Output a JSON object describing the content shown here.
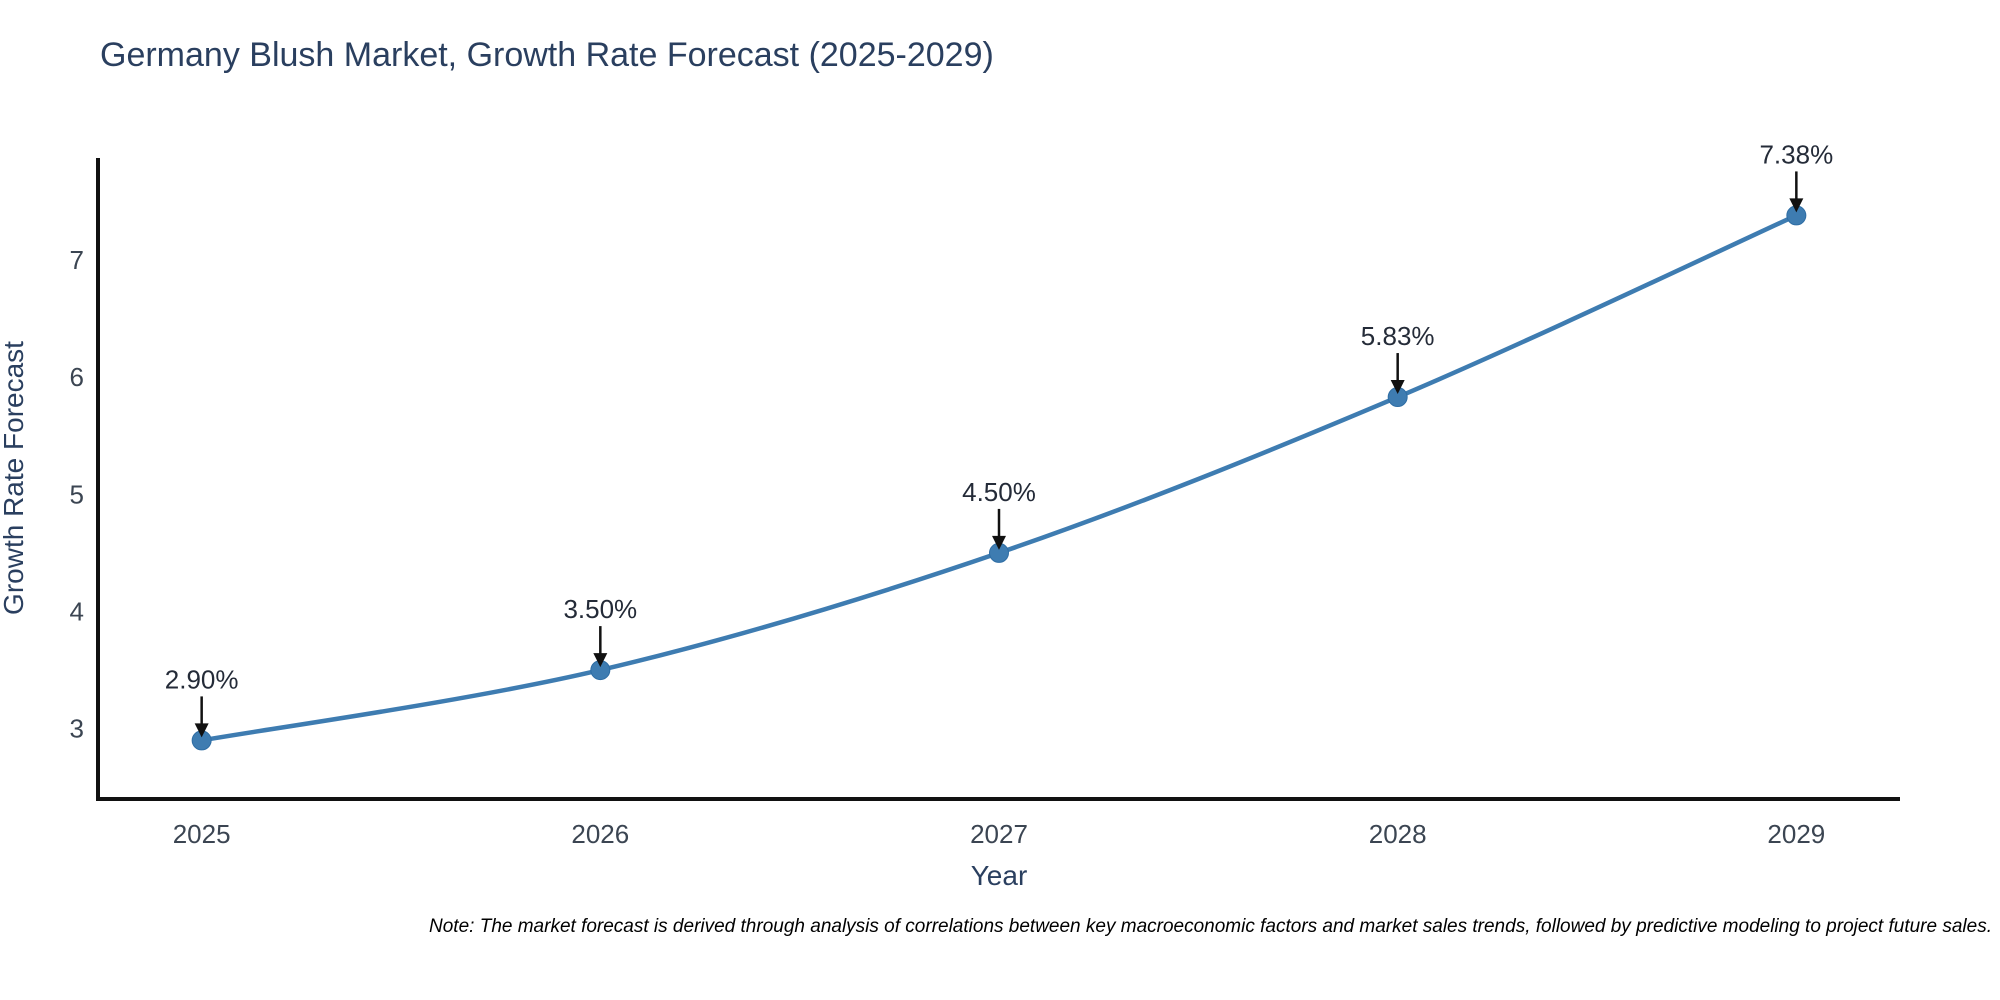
{
  "note": "Note: The market forecast is derived through analysis of correlations between key macroeconomic factors and market sales trends, followed by predictive modeling to project future sales.",
  "colors": {
    "line": "#3E7CB1",
    "marker_fill": "#3E7CB1",
    "marker_edge": "#2E6DA4",
    "axis_line": "#111111",
    "arrow": "#111111",
    "title_text": "#2a3f5f",
    "axis_title_text": "#2a3f5f",
    "tick_text": "#3b4552",
    "annotation_text": "#242b38",
    "note_text": "#000000",
    "background": "#ffffff"
  },
  "chart_data": {
    "type": "line",
    "title": "Germany Blush Market, Growth Rate Forecast (2025-2029)",
    "xlabel": "Year",
    "ylabel": "Growth Rate Forecast",
    "x": [
      2025,
      2026,
      2027,
      2028,
      2029
    ],
    "series": [
      {
        "name": "Growth Rate Forecast",
        "values": [
          2.9,
          3.5,
          4.5,
          5.83,
          7.38
        ]
      }
    ],
    "point_labels": [
      "2.90%",
      "3.50%",
      "4.50%",
      "5.83%",
      "7.38%"
    ],
    "yticks": [
      3,
      4,
      5,
      6,
      7
    ],
    "xlim": [
      2024.74,
      2029.26
    ],
    "ylim": [
      2.4,
      7.87
    ],
    "grid": false,
    "legend": false,
    "line_shape": "spline",
    "marker": "circle",
    "annotation_style": "percent label above point with downward black arrow"
  }
}
